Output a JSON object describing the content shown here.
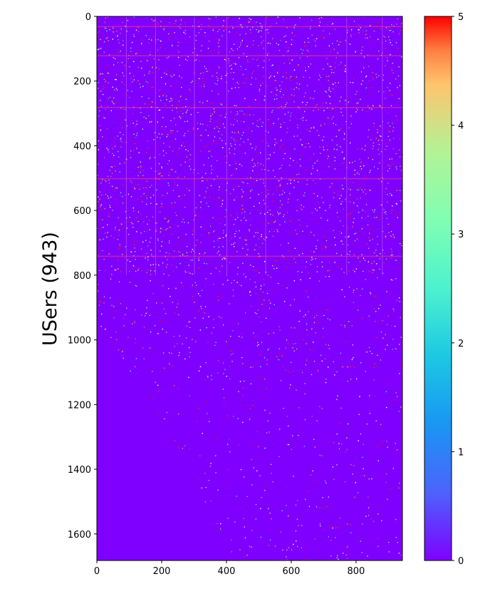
{
  "chart_data": {
    "type": "heatmap",
    "title": "",
    "xlabel": "",
    "ylabel": "USers (943)",
    "xlim": [
      0,
      943
    ],
    "ylim": [
      1682,
      0
    ],
    "x_ticks": [
      0,
      200,
      400,
      600,
      800
    ],
    "y_ticks": [
      0,
      200,
      400,
      600,
      800,
      1000,
      1200,
      1400,
      1600
    ],
    "colorbar": {
      "min": 0,
      "max": 5,
      "ticks": [
        0,
        1,
        2,
        3,
        4,
        5
      ],
      "colormap": "rainbow"
    },
    "background_value": 0,
    "description_values": {
      "dense_rows_range": [
        0,
        800
      ],
      "sparse_boundary_start_row": 950
    }
  },
  "colors": {
    "cmap_0": "#8000ff",
    "cmap_1": "#1996f3",
    "cmap_2": "#4cf2ce",
    "cmap_3": "#b2f396",
    "cmap_4": "#ff954e",
    "cmap_5": "#ff0000"
  }
}
